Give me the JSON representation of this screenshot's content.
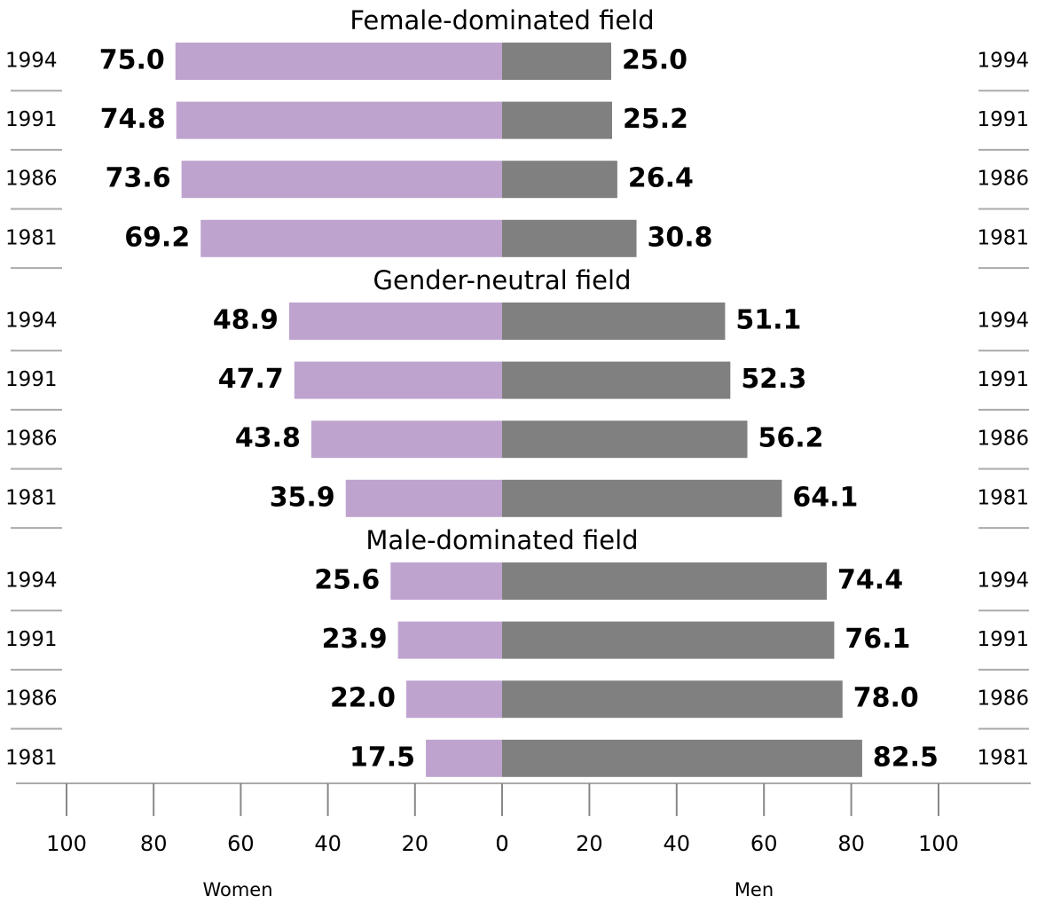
{
  "chart_data": {
    "type": "butterfly-bar",
    "xlim_left": [
      100,
      0
    ],
    "xticks_left": [
      100,
      80,
      60,
      40,
      20,
      0
    ],
    "xlabel_left": "Women",
    "xlim_right": [
      0,
      100
    ],
    "xticks_right": [
      0,
      20,
      40,
      60,
      80,
      100
    ],
    "xlabel_right": "Men",
    "groups": [
      {
        "title": "Female-dominated field",
        "categories": [
          "1994",
          "1991",
          "1986",
          "1981"
        ],
        "series": [
          {
            "side": "left",
            "color": "#bfa3cf",
            "values": [
              75.0,
              74.8,
              73.6,
              69.2
            ],
            "value_labels": [
              "75.0",
              "74.8",
              "73.6",
              "69.2"
            ]
          },
          {
            "side": "right",
            "color": "#808080",
            "values": [
              25.0,
              25.2,
              26.4,
              30.8
            ],
            "value_labels": [
              "25.0",
              "25.2",
              "26.4",
              "30.8"
            ]
          }
        ]
      },
      {
        "title": "Gender-neutral field",
        "categories": [
          "1994",
          "1991",
          "1986",
          "1981"
        ],
        "series": [
          {
            "side": "left",
            "color": "#bfa3cf",
            "values": [
              48.9,
              47.7,
              43.8,
              35.9
            ],
            "value_labels": [
              "48.9",
              "47.7",
              "43.8",
              "35.9"
            ]
          },
          {
            "side": "right",
            "color": "#808080",
            "values": [
              51.1,
              52.3,
              56.2,
              64.1
            ],
            "value_labels": [
              "51.1",
              "52.3",
              "56.2",
              "64.1"
            ]
          }
        ]
      },
      {
        "title": "Male-dominated field",
        "categories": [
          "1994",
          "1991",
          "1986",
          "1981"
        ],
        "series": [
          {
            "side": "left",
            "color": "#bfa3cf",
            "values": [
              25.6,
              23.9,
              22.0,
              17.5
            ],
            "value_labels": [
              "25.6",
              "23.9",
              "22.0",
              "17.5"
            ]
          },
          {
            "side": "right",
            "color": "#808080",
            "values": [
              74.4,
              76.1,
              78.0,
              82.5
            ],
            "value_labels": [
              "74.4",
              "76.1",
              "78.0",
              "82.5"
            ]
          }
        ]
      }
    ]
  }
}
